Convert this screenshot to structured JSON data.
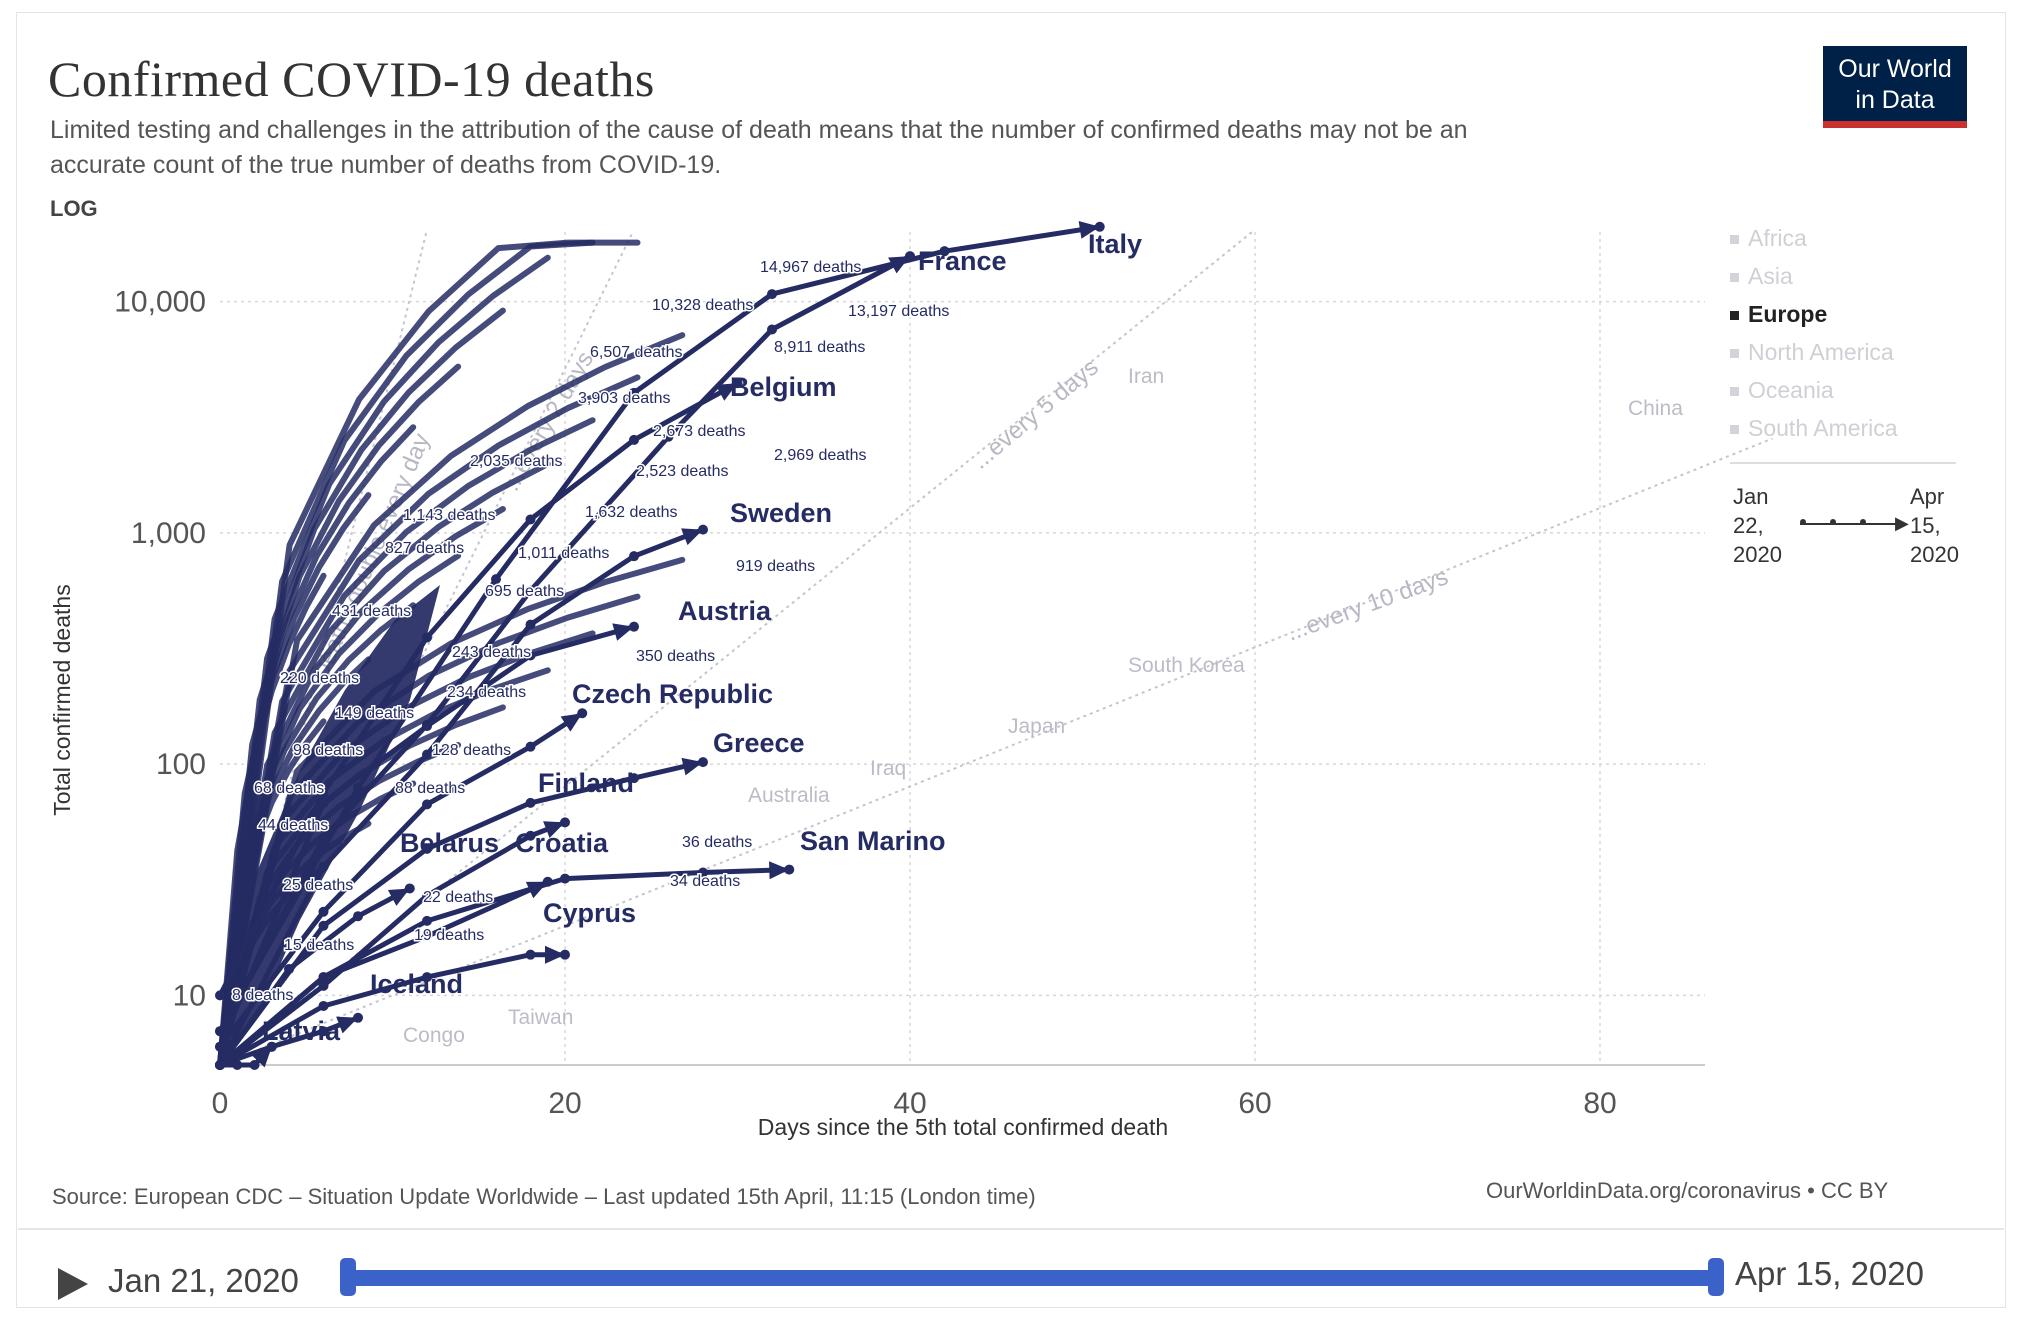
{
  "header": {
    "title": "Confirmed COVID-19 deaths",
    "subtitle_line1": "Limited testing and challenges in the attribution of the cause of death means that the number of confirmed deaths may not be an",
    "subtitle_line2": "accurate count of the true number of deaths from COVID-19.",
    "scale_label": "LOG"
  },
  "logo": {
    "line1": "Our World",
    "line2": "in Data"
  },
  "colors": {
    "europe": "#252b63",
    "muted": "#bcbcc8",
    "logo_bg": "#002147",
    "logo_accent": "#c8312f",
    "slider": "#3a62c9"
  },
  "legend": {
    "items": [
      {
        "label": "Africa",
        "active": false
      },
      {
        "label": "Asia",
        "active": false
      },
      {
        "label": "Europe",
        "active": true
      },
      {
        "label": "North America",
        "active": false
      },
      {
        "label": "Oceania",
        "active": false
      },
      {
        "label": "South America",
        "active": false
      }
    ],
    "timeline_start": "Jan\n22,\n2020",
    "timeline_end": "Apr\n15,\n2020"
  },
  "footer": {
    "source": "Source: European CDC – Situation Update Worldwide – Last updated 15th April, 11:15 (London time)",
    "url": "OurWorldinData.org/coronavirus • CC BY"
  },
  "timeline": {
    "start_date": "Jan 21, 2020",
    "end_date": "Apr 15, 2020"
  },
  "chart_data": {
    "type": "line",
    "title": "Confirmed COVID-19 deaths",
    "xlabel": "Days since the 5th total confirmed death",
    "ylabel": "Total confirmed deaths",
    "x_ticks": [
      0,
      20,
      40,
      60,
      80
    ],
    "y_ticks": [
      10,
      100,
      1000,
      10000
    ],
    "y_tick_labels": [
      "10",
      "100",
      "1,000",
      "10,000"
    ],
    "xlim": [
      0,
      90
    ],
    "ylim": [
      5,
      20000
    ],
    "y_scale": "log",
    "grid": true,
    "legend_position": "right",
    "series": [
      {
        "name": "Italy",
        "points": [
          [
            0,
            7
          ],
          [
            8,
            79
          ],
          [
            16,
            631
          ],
          [
            24,
            4032
          ],
          [
            32,
            10779
          ],
          [
            42,
            16523
          ],
          [
            51,
            21067
          ]
        ]
      },
      {
        "name": "France",
        "points": [
          [
            0,
            7
          ],
          [
            6,
            48
          ],
          [
            12,
            148
          ],
          [
            18,
            562
          ],
          [
            26,
            2606
          ],
          [
            32,
            7574
          ],
          [
            40,
            15729
          ]
        ]
      },
      {
        "name": "Belgium",
        "points": [
          [
            0,
            10
          ],
          [
            6,
            75
          ],
          [
            12,
            353
          ],
          [
            18,
            1143
          ],
          [
            24,
            2523
          ],
          [
            30,
            4440
          ]
        ]
      },
      {
        "name": "Sweden",
        "points": [
          [
            0,
            5
          ],
          [
            6,
            36
          ],
          [
            12,
            110
          ],
          [
            18,
            401
          ],
          [
            24,
            793
          ],
          [
            28,
            1033
          ]
        ]
      },
      {
        "name": "Austria",
        "points": [
          [
            0,
            6
          ],
          [
            6,
            68
          ],
          [
            12,
            146
          ],
          [
            18,
            295
          ],
          [
            24,
            393
          ]
        ]
      },
      {
        "name": "Czech Republic",
        "points": [
          [
            0,
            6
          ],
          [
            6,
            23
          ],
          [
            12,
            67
          ],
          [
            18,
            119
          ],
          [
            21,
            166
          ]
        ]
      },
      {
        "name": "Greece",
        "points": [
          [
            0,
            5
          ],
          [
            6,
            20
          ],
          [
            12,
            43
          ],
          [
            18,
            68
          ],
          [
            24,
            87
          ],
          [
            28,
            102
          ]
        ]
      },
      {
        "name": "Finland",
        "points": [
          [
            0,
            5
          ],
          [
            6,
            11
          ],
          [
            12,
            27
          ],
          [
            18,
            49
          ],
          [
            20,
            56
          ]
        ]
      },
      {
        "name": "Belarus",
        "points": [
          [
            0,
            5
          ],
          [
            4,
            13
          ],
          [
            8,
            22
          ],
          [
            11,
            29
          ]
        ]
      },
      {
        "name": "Croatia",
        "points": [
          [
            0,
            5
          ],
          [
            6,
            12
          ],
          [
            12,
            18
          ],
          [
            19,
            31
          ]
        ]
      },
      {
        "name": "San Marino",
        "points": [
          [
            0,
            5
          ],
          [
            6,
            12
          ],
          [
            12,
            21
          ],
          [
            20,
            32
          ],
          [
            28,
            34
          ],
          [
            33,
            35
          ]
        ]
      },
      {
        "name": "Cyprus",
        "points": [
          [
            0,
            5
          ],
          [
            6,
            9
          ],
          [
            12,
            12
          ],
          [
            18,
            15
          ],
          [
            20,
            15
          ]
        ]
      },
      {
        "name": "Iceland",
        "points": [
          [
            0,
            5
          ],
          [
            3,
            6
          ],
          [
            6,
            7
          ],
          [
            8,
            8
          ]
        ]
      },
      {
        "name": "Latvia",
        "points": [
          [
            0,
            5
          ],
          [
            1,
            5
          ],
          [
            2,
            5
          ],
          [
            3,
            6
          ]
        ]
      }
    ],
    "other_countries": [
      "Iran",
      "China",
      "South Korea",
      "Japan",
      "Iraq",
      "Australia",
      "Congo",
      "Taiwan"
    ],
    "reference_lines": [
      {
        "label": "Deaths double every day"
      },
      {
        "label": "...every 2 days"
      },
      {
        "label": "...every 5 days"
      },
      {
        "label": "...every 10 days"
      }
    ],
    "death_labels": [
      "14,967 deaths",
      "10,328 deaths",
      "13,197 deaths",
      "6,507 deaths",
      "8,911 deaths",
      "3,903 deaths",
      "2,673 deaths",
      "2,035 deaths",
      "2,969 deaths",
      "2,523 deaths",
      "1,143 deaths",
      "1,632 deaths",
      "827 deaths",
      "1,011 deaths",
      "919 deaths",
      "695 deaths",
      "431 deaths",
      "243 deaths",
      "350 deaths",
      "220 deaths",
      "234 deaths",
      "149 deaths",
      "98 deaths",
      "128 deaths",
      "68 deaths",
      "88 deaths",
      "44 deaths",
      "36 deaths",
      "34 deaths",
      "25 deaths",
      "22 deaths",
      "19 deaths",
      "15 deaths",
      "8 deaths"
    ]
  }
}
